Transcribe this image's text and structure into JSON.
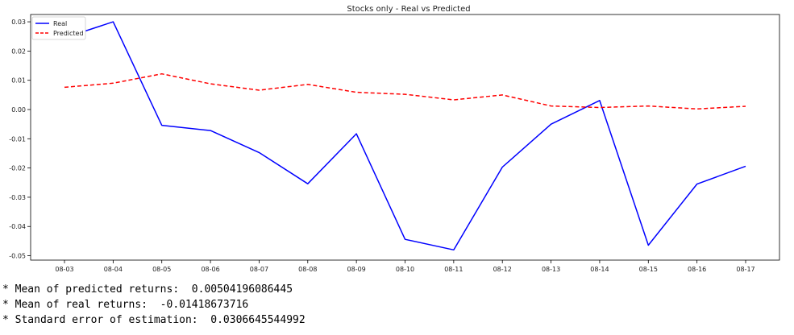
{
  "chart_data": {
    "type": "line",
    "title": "Stocks only - Real vs Predicted",
    "xlabel": "",
    "ylabel": "",
    "categories": [
      "08-03",
      "08-04",
      "08-05",
      "08-06",
      "08-07",
      "08-08",
      "08-09",
      "08-10",
      "08-11",
      "08-12",
      "08-13",
      "08-14",
      "08-15",
      "08-16",
      "08-17"
    ],
    "series": [
      {
        "name": "Real",
        "color": "#0000ff",
        "style": "solid",
        "values": [
          0.0245,
          0.03,
          -0.0054,
          -0.0072,
          -0.0147,
          -0.0254,
          -0.0083,
          -0.0444,
          -0.048,
          -0.0197,
          -0.005,
          0.0031,
          -0.0464,
          -0.0255,
          -0.0194
        ]
      },
      {
        "name": "Predicted",
        "color": "#ff0000",
        "style": "dashed",
        "values": [
          0.0076,
          0.009,
          0.0122,
          0.0088,
          0.0066,
          0.0086,
          0.0059,
          0.0052,
          0.0033,
          0.005,
          0.0012,
          0.0007,
          0.0012,
          0.0002,
          0.0011
        ]
      }
    ],
    "ylim": [
      -0.0515,
      0.0325
    ],
    "yticks": [
      "0.03",
      "0.02",
      "0.01",
      "0.00",
      "-0.01",
      "-0.02",
      "-0.03",
      "-0.04",
      "-0.05"
    ],
    "ytick_values": [
      0.03,
      0.02,
      0.01,
      0.0,
      -0.01,
      -0.02,
      -0.03,
      -0.04,
      -0.05
    ],
    "grid": false,
    "legend_position": "top-left"
  },
  "stats": [
    "* Mean of predicted returns:  0.00504196086445",
    "* Mean of real returns:  -0.01418673716",
    "* Standard error of estimation:  0.0306645544992"
  ]
}
